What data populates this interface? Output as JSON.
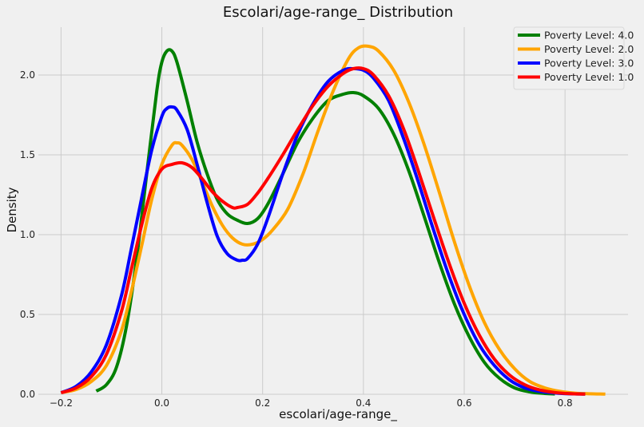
{
  "chart_data": {
    "type": "line",
    "title": "Escolari/age-range_ Distribution",
    "xlabel": "escolari/age-range_",
    "ylabel": "Density",
    "xlim": [
      -0.245,
      0.925
    ],
    "ylim": [
      0,
      2.3
    ],
    "xticks": [
      -0.2,
      0.0,
      0.2,
      0.4,
      0.6,
      0.8
    ],
    "xtick_labels": [
      "−0.2",
      "0.0",
      "0.2",
      "0.4",
      "0.6",
      "0.8"
    ],
    "yticks": [
      0.0,
      0.5,
      1.0,
      1.5,
      2.0
    ],
    "ytick_labels": [
      "0.0",
      "0.5",
      "1.0",
      "1.5",
      "2.0"
    ],
    "grid": true,
    "legend_position": "top-right",
    "series": [
      {
        "name": "Poverty Level: 4.0",
        "color": "#008000",
        "x": [
          -0.13,
          -0.11,
          -0.09,
          -0.07,
          -0.05,
          -0.03,
          -0.01,
          0.0,
          0.01,
          0.02,
          0.03,
          0.05,
          0.07,
          0.09,
          0.11,
          0.13,
          0.15,
          0.17,
          0.19,
          0.21,
          0.24,
          0.27,
          0.3,
          0.33,
          0.36,
          0.38,
          0.4,
          0.43,
          0.46,
          0.49,
          0.52,
          0.55,
          0.58,
          0.61,
          0.64,
          0.67,
          0.7,
          0.73,
          0.76,
          0.78
        ],
        "values": [
          0.02,
          0.06,
          0.17,
          0.43,
          0.85,
          1.38,
          1.9,
          2.08,
          2.15,
          2.15,
          2.08,
          1.84,
          1.58,
          1.38,
          1.22,
          1.13,
          1.09,
          1.07,
          1.1,
          1.19,
          1.38,
          1.58,
          1.73,
          1.84,
          1.88,
          1.89,
          1.87,
          1.79,
          1.63,
          1.4,
          1.12,
          0.83,
          0.57,
          0.36,
          0.2,
          0.1,
          0.04,
          0.015,
          0.005,
          0.002
        ]
      },
      {
        "name": "Poverty Level: 2.0",
        "color": "#ffa500",
        "x": [
          -0.2,
          -0.17,
          -0.14,
          -0.11,
          -0.08,
          -0.06,
          -0.04,
          -0.02,
          0.0,
          0.02,
          0.03,
          0.04,
          0.06,
          0.08,
          0.1,
          0.12,
          0.14,
          0.16,
          0.18,
          0.2,
          0.22,
          0.25,
          0.28,
          0.31,
          0.34,
          0.37,
          0.39,
          0.41,
          0.43,
          0.46,
          0.49,
          0.52,
          0.55,
          0.58,
          0.61,
          0.64,
          0.67,
          0.7,
          0.73,
          0.76,
          0.79,
          0.82,
          0.85,
          0.88
        ],
        "values": [
          0.01,
          0.03,
          0.08,
          0.18,
          0.4,
          0.65,
          0.93,
          1.22,
          1.44,
          1.56,
          1.575,
          1.56,
          1.47,
          1.33,
          1.18,
          1.06,
          0.98,
          0.94,
          0.94,
          0.97,
          1.03,
          1.16,
          1.38,
          1.65,
          1.9,
          2.1,
          2.17,
          2.18,
          2.15,
          2.03,
          1.83,
          1.57,
          1.27,
          0.96,
          0.68,
          0.45,
          0.28,
          0.16,
          0.08,
          0.04,
          0.018,
          0.007,
          0.003,
          0.001
        ]
      },
      {
        "name": "Poverty Level: 3.0",
        "color": "#0000ff",
        "x": [
          -0.2,
          -0.17,
          -0.14,
          -0.11,
          -0.08,
          -0.06,
          -0.04,
          -0.02,
          0.0,
          0.01,
          0.02,
          0.03,
          0.05,
          0.07,
          0.09,
          0.11,
          0.13,
          0.15,
          0.16,
          0.17,
          0.19,
          0.21,
          0.24,
          0.27,
          0.3,
          0.33,
          0.36,
          0.38,
          0.4,
          0.42,
          0.45,
          0.48,
          0.51,
          0.54,
          0.57,
          0.6,
          0.63,
          0.66,
          0.69,
          0.72,
          0.75,
          0.78,
          0.81,
          0.84
        ],
        "values": [
          0.01,
          0.05,
          0.14,
          0.31,
          0.62,
          0.92,
          1.23,
          1.53,
          1.74,
          1.79,
          1.8,
          1.78,
          1.66,
          1.44,
          1.2,
          0.99,
          0.88,
          0.84,
          0.84,
          0.85,
          0.94,
          1.1,
          1.38,
          1.63,
          1.82,
          1.96,
          2.03,
          2.04,
          2.03,
          1.98,
          1.84,
          1.6,
          1.32,
          1.02,
          0.74,
          0.5,
          0.31,
          0.18,
          0.09,
          0.04,
          0.018,
          0.008,
          0.003,
          0.001
        ]
      },
      {
        "name": "Poverty Level: 1.0",
        "color": "#ff0000",
        "x": [
          -0.2,
          -0.17,
          -0.14,
          -0.11,
          -0.08,
          -0.06,
          -0.04,
          -0.02,
          0.0,
          0.02,
          0.04,
          0.06,
          0.08,
          0.1,
          0.12,
          0.14,
          0.15,
          0.17,
          0.19,
          0.21,
          0.24,
          0.27,
          0.3,
          0.33,
          0.36,
          0.38,
          0.4,
          0.42,
          0.45,
          0.48,
          0.51,
          0.54,
          0.57,
          0.6,
          0.63,
          0.66,
          0.69,
          0.72,
          0.75,
          0.78,
          0.81,
          0.84
        ],
        "values": [
          0.01,
          0.04,
          0.11,
          0.25,
          0.52,
          0.79,
          1.06,
          1.29,
          1.41,
          1.44,
          1.45,
          1.42,
          1.35,
          1.27,
          1.21,
          1.17,
          1.17,
          1.19,
          1.26,
          1.35,
          1.5,
          1.66,
          1.81,
          1.93,
          2.01,
          2.04,
          2.04,
          2.0,
          1.87,
          1.66,
          1.39,
          1.1,
          0.82,
          0.57,
          0.37,
          0.22,
          0.12,
          0.06,
          0.027,
          0.011,
          0.004,
          0.001
        ]
      }
    ]
  }
}
